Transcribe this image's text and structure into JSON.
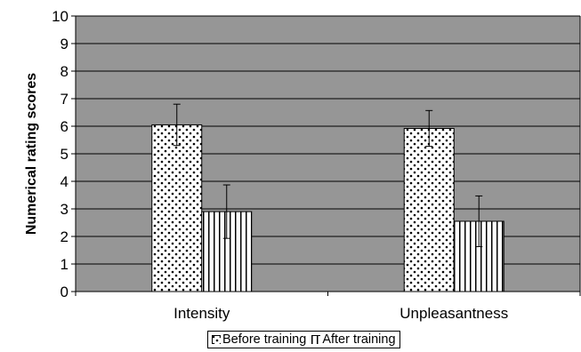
{
  "chart_data": {
    "type": "bar",
    "title": "",
    "xlabel": "",
    "ylabel": "Numerical rating scores",
    "ylim": [
      0,
      10
    ],
    "yticks": [
      0,
      1,
      2,
      3,
      4,
      5,
      6,
      7,
      8,
      9,
      10
    ],
    "grid": true,
    "legend_position": "bottom",
    "plot_background": "#969696",
    "categories": [
      "Intensity",
      "Unpleasantness"
    ],
    "series": [
      {
        "name": "Before training",
        "pattern": "dots",
        "values": [
          6.05,
          5.92
        ],
        "error": [
          0.75,
          0.65
        ]
      },
      {
        "name": "After training",
        "pattern": "vertical-stripes",
        "values": [
          2.9,
          2.55
        ],
        "error": [
          0.97,
          0.92
        ]
      }
    ]
  }
}
